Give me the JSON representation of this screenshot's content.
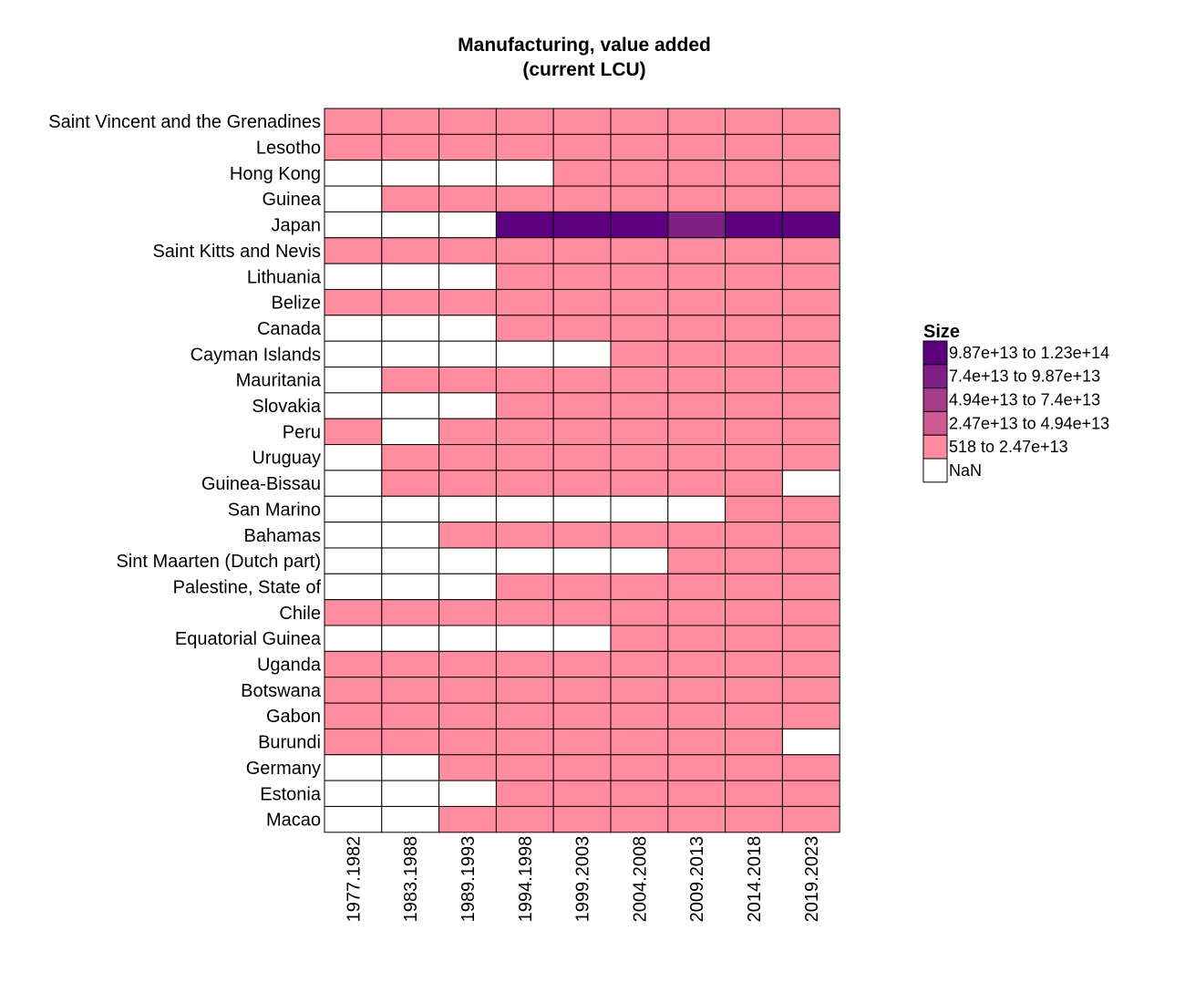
{
  "chart_data": {
    "type": "heatmap",
    "title_line1": "Manufacturing, value added",
    "title_line2": "(current LCU)",
    "x": [
      "1977.1982",
      "1983.1988",
      "1989.1993",
      "1994.1998",
      "1999.2003",
      "2004.2008",
      "2009.2013",
      "2014.2018",
      "2019.2023"
    ],
    "y": [
      "Saint Vincent and the Grenadines",
      "Lesotho",
      "Hong Kong",
      "Guinea",
      "Japan",
      "Saint Kitts and Nevis",
      "Lithuania",
      "Belize",
      "Canada",
      "Cayman Islands",
      "Mauritania",
      "Slovakia",
      "Peru",
      "Uruguay",
      "Guinea-Bissau",
      "San Marino",
      "Bahamas",
      "Sint Maarten (Dutch part)",
      "Palestine, State of",
      "Chile",
      "Equatorial Guinea",
      "Uganda",
      "Botswana",
      "Gabon",
      "Burundi",
      "Germany",
      "Estonia",
      "Macao"
    ],
    "bins": [
      {
        "label": "9.87e+13 to 1.23e+14",
        "color": "#5c0080"
      },
      {
        "label": "7.4e+13 to 9.87e+13",
        "color": "#7f1f86"
      },
      {
        "label": "4.94e+13 to 7.4e+13",
        "color": "#a53c8c"
      },
      {
        "label": "2.47e+13 to 4.94e+13",
        "color": "#d05a94"
      },
      {
        "label": "518 to 2.47e+13",
        "color": "#ff8b9e"
      },
      {
        "label": "NaN",
        "color": "#ffffff"
      }
    ],
    "legend_title": "Size",
    "legend_position": "right",
    "cells": [
      [
        4,
        4,
        4,
        4,
        4,
        4,
        4,
        4,
        4
      ],
      [
        4,
        4,
        4,
        4,
        4,
        4,
        4,
        4,
        4
      ],
      [
        5,
        5,
        5,
        5,
        4,
        4,
        4,
        4,
        4
      ],
      [
        5,
        4,
        4,
        4,
        4,
        4,
        4,
        4,
        4
      ],
      [
        5,
        5,
        5,
        0,
        0,
        0,
        1,
        0,
        0
      ],
      [
        4,
        4,
        4,
        4,
        4,
        4,
        4,
        4,
        4
      ],
      [
        5,
        5,
        5,
        4,
        4,
        4,
        4,
        4,
        4
      ],
      [
        4,
        4,
        4,
        4,
        4,
        4,
        4,
        4,
        4
      ],
      [
        5,
        5,
        5,
        4,
        4,
        4,
        4,
        4,
        4
      ],
      [
        5,
        5,
        5,
        5,
        5,
        4,
        4,
        4,
        4
      ],
      [
        5,
        4,
        4,
        4,
        4,
        4,
        4,
        4,
        4
      ],
      [
        5,
        5,
        5,
        4,
        4,
        4,
        4,
        4,
        4
      ],
      [
        4,
        5,
        4,
        4,
        4,
        4,
        4,
        4,
        4
      ],
      [
        5,
        4,
        4,
        4,
        4,
        4,
        4,
        4,
        4
      ],
      [
        5,
        4,
        4,
        4,
        4,
        4,
        4,
        4,
        5
      ],
      [
        5,
        5,
        5,
        5,
        5,
        5,
        5,
        4,
        4
      ],
      [
        5,
        5,
        4,
        4,
        4,
        4,
        4,
        4,
        4
      ],
      [
        5,
        5,
        5,
        5,
        5,
        5,
        4,
        4,
        4
      ],
      [
        5,
        5,
        5,
        4,
        4,
        4,
        4,
        4,
        4
      ],
      [
        4,
        4,
        4,
        4,
        4,
        4,
        4,
        4,
        4
      ],
      [
        5,
        5,
        5,
        5,
        5,
        4,
        4,
        4,
        4
      ],
      [
        4,
        4,
        4,
        4,
        4,
        4,
        4,
        4,
        4
      ],
      [
        4,
        4,
        4,
        4,
        4,
        4,
        4,
        4,
        4
      ],
      [
        4,
        4,
        4,
        4,
        4,
        4,
        4,
        4,
        4
      ],
      [
        4,
        4,
        4,
        4,
        4,
        4,
        4,
        4,
        5
      ],
      [
        5,
        5,
        4,
        4,
        4,
        4,
        4,
        4,
        4
      ],
      [
        5,
        5,
        5,
        4,
        4,
        4,
        4,
        4,
        4
      ],
      [
        5,
        5,
        4,
        4,
        4,
        4,
        4,
        4,
        4
      ]
    ]
  }
}
